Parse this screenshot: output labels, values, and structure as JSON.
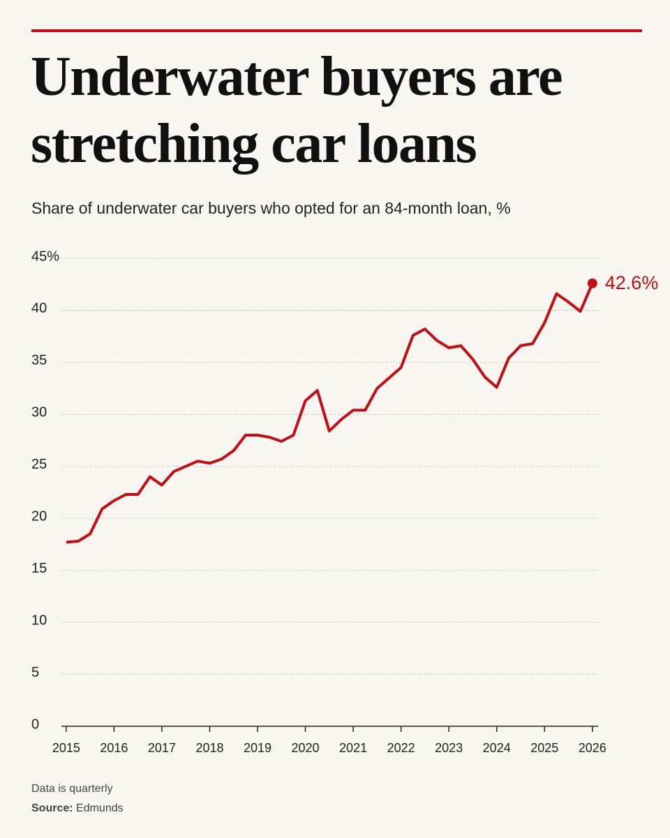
{
  "chart_data": {
    "type": "line",
    "title": "Underwater buyers are stretching car loans",
    "subtitle": "Share of underwater car buyers who opted for an 84-month loan, %",
    "x": [
      2015,
      2015.25,
      2015.5,
      2015.75,
      2016,
      2016.25,
      2016.5,
      2016.75,
      2017,
      2017.25,
      2017.5,
      2017.75,
      2018,
      2018.25,
      2018.5,
      2018.75,
      2019,
      2019.25,
      2019.5,
      2019.75,
      2020,
      2020.25,
      2020.5,
      2020.75,
      2021,
      2021.25,
      2021.5,
      2021.75,
      2022,
      2022.25,
      2022.5,
      2022.75,
      2023,
      2023.25,
      2023.5,
      2023.75,
      2024,
      2024.25,
      2024.5,
      2024.75,
      2025,
      2025.25,
      2025.5,
      2025.75,
      2026
    ],
    "series": [
      {
        "name": "Share of underwater buyers with 84-month loan",
        "color": "#c40d12",
        "values": [
          17.7,
          17.8,
          18.5,
          20.9,
          21.7,
          22.3,
          22.3,
          24.0,
          23.2,
          24.5,
          25.0,
          25.5,
          25.3,
          25.7,
          26.5,
          28.0,
          28.0,
          27.8,
          27.4,
          28.0,
          31.3,
          32.3,
          28.4,
          29.5,
          30.4,
          30.4,
          32.5,
          33.5,
          34.5,
          37.6,
          38.2,
          37.1,
          36.4,
          36.6,
          35.3,
          33.6,
          32.6,
          35.4,
          36.6,
          36.8,
          38.8,
          41.6,
          40.8,
          39.9,
          42.6
        ],
        "value_labels": [
          null,
          null,
          null,
          null,
          null,
          null,
          null,
          null,
          null,
          null,
          null,
          null,
          null,
          null,
          null,
          null,
          null,
          null,
          null,
          null,
          null,
          null,
          null,
          null,
          null,
          null,
          null,
          null,
          null,
          null,
          null,
          null,
          null,
          null,
          null,
          null,
          null,
          null,
          null,
          null,
          null,
          null,
          null,
          null,
          "42.6%"
        ]
      }
    ],
    "xlim": [
      2014.9,
      2026.12
    ],
    "xticks": [
      2015,
      2016,
      2017,
      2018,
      2019,
      2020,
      2021,
      2022,
      2023,
      2024,
      2025,
      2026
    ],
    "ylim": [
      0,
      45
    ],
    "yticks": [
      0,
      5,
      10,
      15,
      20,
      25,
      30,
      35,
      40,
      {
        "value": 45,
        "label": "45%"
      }
    ],
    "grid": true,
    "note": "Data is quarterly",
    "source": {
      "label": "Source:",
      "text": "Edmunds"
    }
  }
}
